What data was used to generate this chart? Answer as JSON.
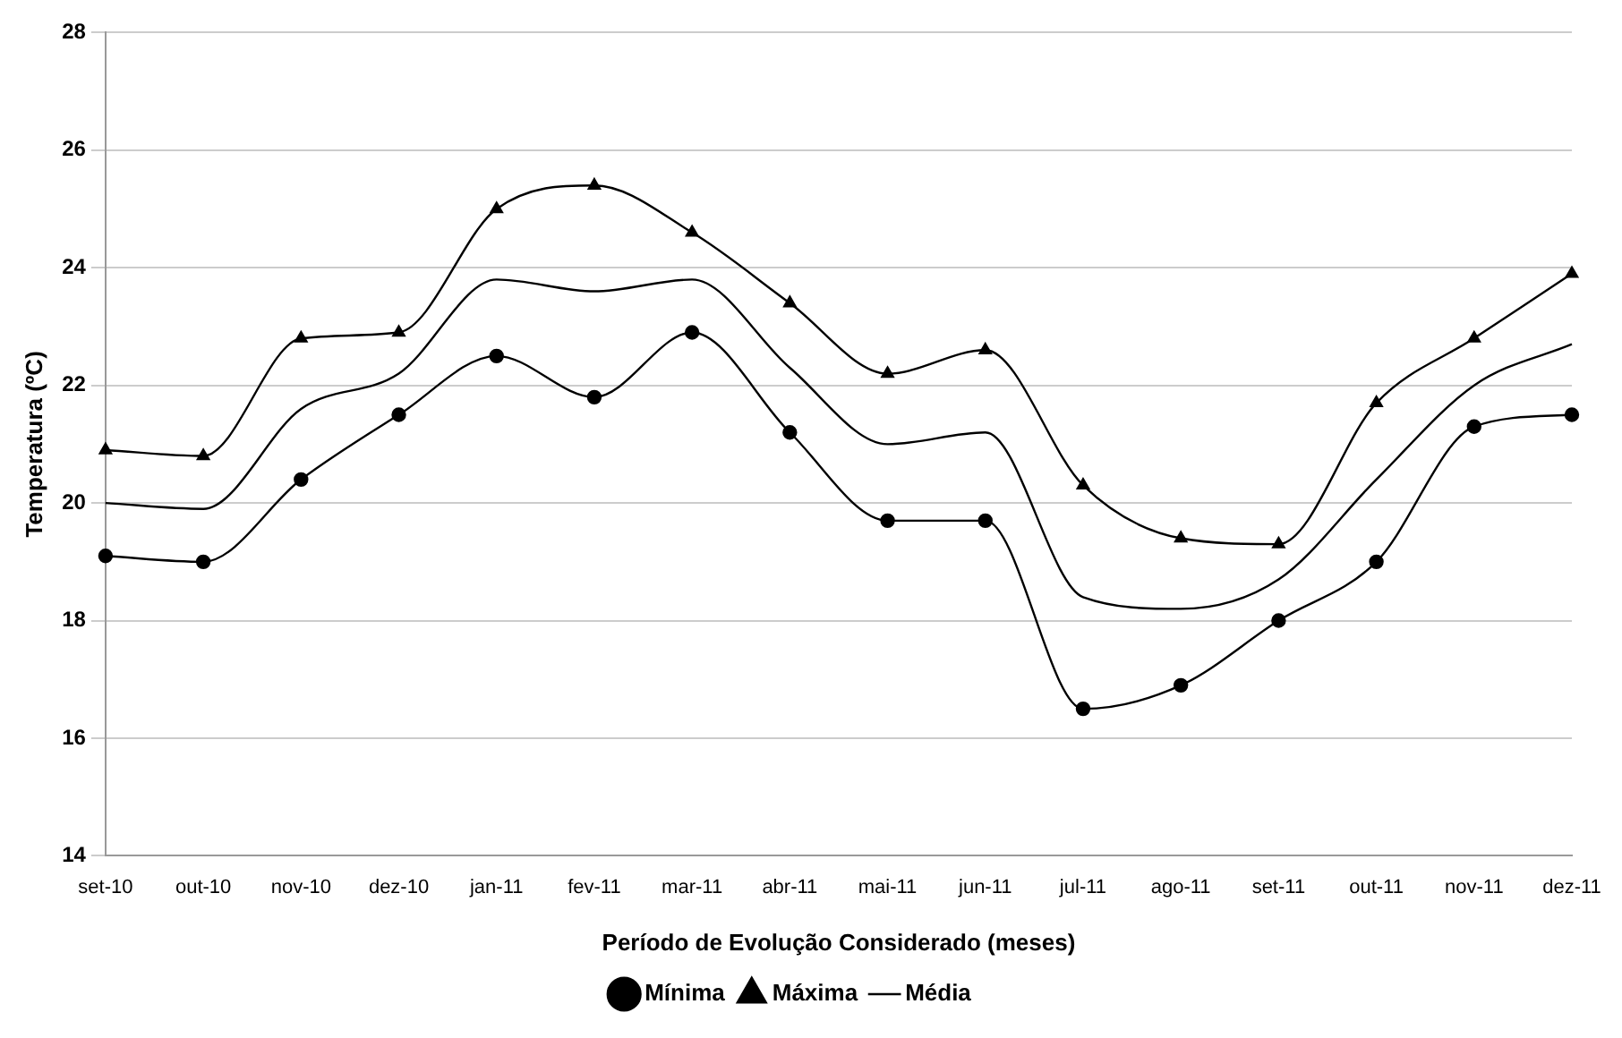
{
  "chart_data": {
    "type": "line",
    "xlabel": "Período de Evolução Considerado (meses)",
    "ylabel": "Temperatura (ºC)",
    "categories": [
      "set-10",
      "out-10",
      "nov-10",
      "dez-10",
      "jan-11",
      "fev-11",
      "mar-11",
      "abr-11",
      "mai-11",
      "jun-11",
      "jul-11",
      "ago-11",
      "set-11",
      "out-11",
      "nov-11",
      "dez-11"
    ],
    "series": [
      {
        "name": "Mínima",
        "color": "#000000",
        "marker": "circle",
        "values": [
          19.1,
          19.0,
          20.4,
          21.5,
          22.5,
          21.8,
          22.9,
          21.2,
          19.7,
          19.7,
          16.5,
          16.9,
          18.0,
          19.0,
          21.3,
          21.5
        ]
      },
      {
        "name": "Máxima",
        "color": "#000000",
        "marker": "triangle",
        "values": [
          20.9,
          20.8,
          22.8,
          22.9,
          25.0,
          25.4,
          24.6,
          23.4,
          22.2,
          22.6,
          20.3,
          19.4,
          19.3,
          21.7,
          22.8,
          23.9
        ]
      },
      {
        "name": "Média",
        "color": "#000000",
        "marker": "none",
        "values": [
          20.0,
          19.9,
          21.6,
          22.2,
          23.8,
          23.6,
          23.8,
          22.3,
          21.0,
          21.2,
          18.4,
          18.2,
          18.7,
          20.4,
          22.0,
          22.7
        ]
      }
    ],
    "ylim": [
      14,
      28
    ],
    "yticks": [
      14,
      16,
      18,
      20,
      22,
      24,
      26,
      28
    ],
    "grid": "y",
    "legend": "bottom"
  }
}
